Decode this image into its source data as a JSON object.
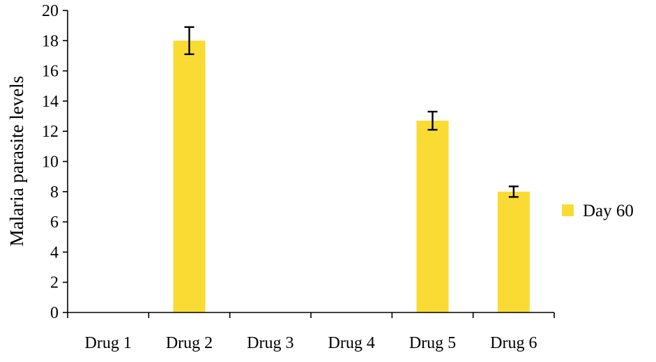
{
  "chart_data": {
    "type": "bar",
    "title": "",
    "xlabel": "",
    "ylabel": "Malaria parasite levels",
    "categories": [
      "Drug 1",
      "Drug 2",
      "Drug 3",
      "Drug 4",
      "Drug 5",
      "Drug 6"
    ],
    "series": [
      {
        "name": "Day 60",
        "color": "#F9DB34",
        "values": [
          0,
          18,
          0,
          0,
          12.7,
          8
        ],
        "errors": [
          null,
          0.9,
          null,
          null,
          0.6,
          0.35
        ]
      }
    ],
    "ylim": [
      0,
      20
    ],
    "yticks": [
      "0",
      "2",
      "4",
      "6",
      "8",
      "10",
      "12",
      "14",
      "16",
      "18",
      "20"
    ],
    "grid": false,
    "legend_position": "right"
  }
}
